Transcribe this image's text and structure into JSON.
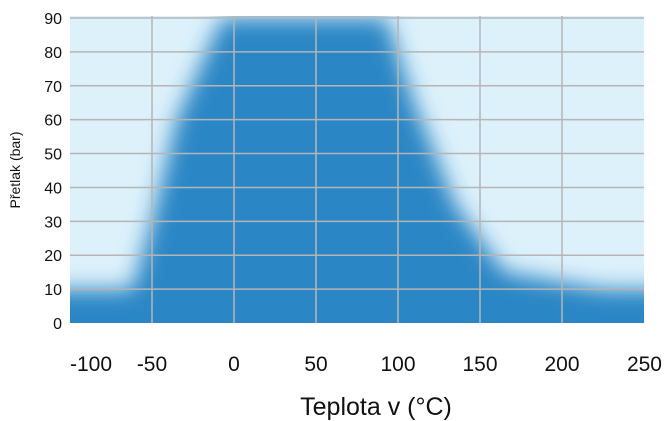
{
  "chart_data": {
    "type": "area",
    "title": "",
    "xlabel": "Teplota v (°C)",
    "ylabel": "Přetlak (bar)",
    "xlim": [
      -100,
      250
    ],
    "ylim": [
      0,
      90
    ],
    "x_ticks": [
      -100,
      -50,
      0,
      50,
      100,
      150,
      200,
      250
    ],
    "x_tick_labels": [
      "-100",
      "-50",
      "0",
      "50",
      "100",
      "150",
      "200",
      "250"
    ],
    "y_ticks": [
      0,
      10,
      20,
      30,
      40,
      50,
      60,
      70,
      80,
      90
    ],
    "y_tick_labels": [
      "0",
      "10",
      "20",
      "30",
      "40",
      "50",
      "60",
      "70",
      "80",
      "90"
    ],
    "grid": true,
    "background_color": "#ddf1fb",
    "fill_color": "#2b86c5",
    "gridline_color": "#b5b5b5",
    "series": [
      {
        "points": [
          {
            "x": -100,
            "y": 10
          },
          {
            "x": -62,
            "y": 10
          },
          {
            "x": -50,
            "y": 30
          },
          {
            "x": -35,
            "y": 60
          },
          {
            "x": -12,
            "y": 85
          },
          {
            "x": -7,
            "y": 90
          },
          {
            "x": 93,
            "y": 90
          },
          {
            "x": 110,
            "y": 65
          },
          {
            "x": 135,
            "y": 35
          },
          {
            "x": 165,
            "y": 15
          },
          {
            "x": 225,
            "y": 10
          },
          {
            "x": 250,
            "y": 10
          }
        ]
      }
    ]
  }
}
